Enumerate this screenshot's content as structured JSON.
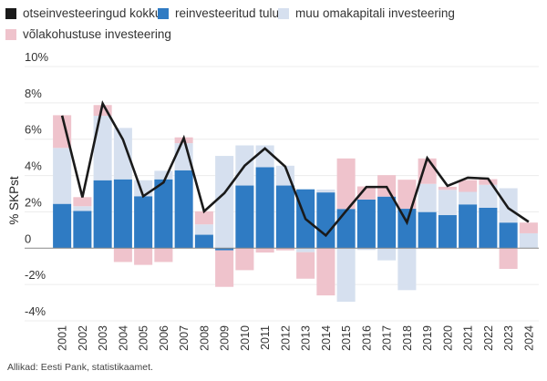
{
  "chart_data": {
    "type": "bar",
    "stacked": true,
    "title": "",
    "xlabel": "",
    "ylabel": "% SKPst",
    "ylim": [
      -4,
      10
    ],
    "yticks": [
      -4,
      -2,
      0,
      2,
      4,
      6,
      8,
      10
    ],
    "ytick_labels": [
      "-4%",
      "-2%",
      "0",
      "2%",
      "4%",
      "6%",
      "8%",
      "10%"
    ],
    "grid": true,
    "legend_position": "top",
    "categories": [
      "2001",
      "2002",
      "2003",
      "2004",
      "2005",
      "2006",
      "2007",
      "2008",
      "2009",
      "2010",
      "2011",
      "2012",
      "2013",
      "2014",
      "2015",
      "2016",
      "2017",
      "2018",
      "2019",
      "2020",
      "2021",
      "2022",
      "2023",
      "2024"
    ],
    "series": [
      {
        "name": "reinvesteeritud tulu",
        "kind": "bar",
        "color": "#2f7bc3",
        "values": [
          2.44,
          2.05,
          3.74,
          3.79,
          2.86,
          3.79,
          4.29,
          0.74,
          -0.12,
          3.45,
          4.46,
          3.45,
          3.24,
          3.07,
          2.16,
          2.68,
          2.84,
          2.17,
          1.99,
          1.82,
          2.41,
          2.23,
          1.41,
          0
        ]
      },
      {
        "name": "muu omakapitali investeering",
        "kind": "bar",
        "color": "#d6e0ef",
        "values": [
          3.08,
          0.26,
          3.55,
          2.83,
          0.88,
          0.47,
          1.49,
          0.57,
          5.08,
          2.21,
          1.2,
          1.09,
          -0.22,
          0.16,
          -2.95,
          -0.1,
          -0.67,
          -2.31,
          1.55,
          1.39,
          0.69,
          1.26,
          1.89,
          0.82
        ]
      },
      {
        "name": "võlakohustuse investeering",
        "kind": "bar",
        "color": "#efc3cc",
        "values": [
          1.8,
          0.5,
          0.59,
          -0.76,
          -0.92,
          -0.76,
          0.32,
          0.72,
          -2.01,
          -1.21,
          -0.24,
          -0.12,
          -1.46,
          -2.6,
          2.78,
          0.72,
          1.18,
          1.6,
          1.4,
          0.17,
          0.65,
          0.31,
          -1.14,
          0.59
        ]
      },
      {
        "name": "otseinvesteeringud kokku",
        "kind": "line",
        "color": "#1a1a1a",
        "values": [
          7.3,
          2.8,
          7.96,
          5.98,
          2.86,
          3.62,
          6.06,
          2.03,
          3.03,
          4.54,
          5.49,
          4.49,
          1.61,
          0.7,
          2.05,
          3.37,
          3.37,
          1.42,
          4.96,
          3.43,
          3.88,
          3.83,
          2.2,
          1.45
        ]
      }
    ]
  },
  "legend": [
    {
      "label": "otseinvesteeringud kokku",
      "color": "#1a1a1a"
    },
    {
      "label": "reinvesteeritud tulu",
      "color": "#2f7bc3"
    },
    {
      "label": "muu omakapitali investeering",
      "color": "#d6e0ef"
    },
    {
      "label": "võlakohustuse investeering",
      "color": "#efc3cc"
    }
  ],
  "footer": "Allikad: Eesti Pank, statistikaamet."
}
